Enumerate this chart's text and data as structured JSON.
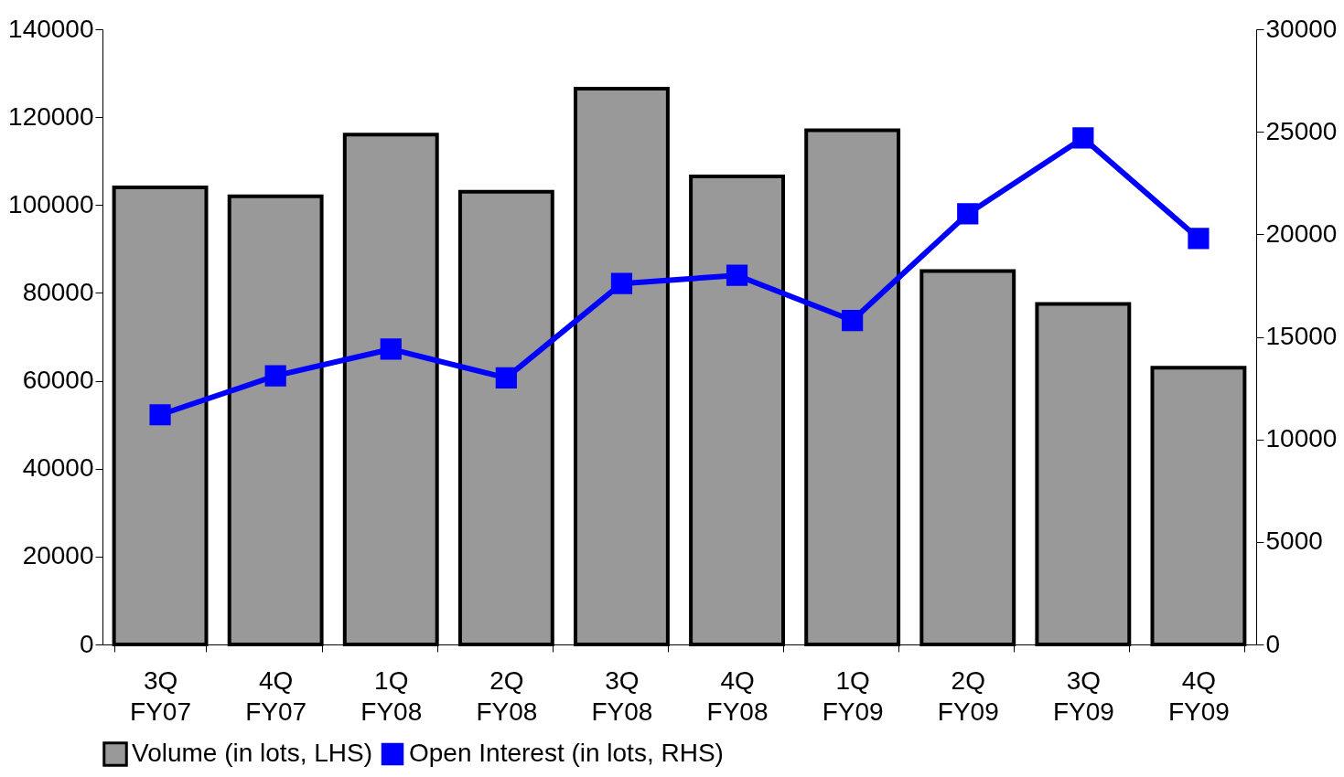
{
  "chart_data": {
    "type": "bar",
    "categories": [
      "3Q FY07",
      "4Q FY07",
      "1Q FY08",
      "2Q FY08",
      "3Q FY08",
      "4Q FY08",
      "1Q FY09",
      "2Q FY09",
      "3Q FY09",
      "4Q FY09"
    ],
    "series": [
      {
        "name": "Volume (in lots, LHS)",
        "color": "#999999",
        "values": [
          104000,
          102000,
          116000,
          103000,
          126500,
          106500,
          117000,
          85000,
          77500,
          63000
        ]
      },
      {
        "name": "Open Interest (in lots, RHS)",
        "type": "line",
        "axis": "y2",
        "color": "#0000ff",
        "values": [
          11200,
          13100,
          14400,
          13000,
          17600,
          18000,
          15800,
          21000,
          24700,
          19800
        ]
      }
    ],
    "ylim": [
      0,
      140000
    ],
    "yticks": [
      0,
      20000,
      40000,
      60000,
      80000,
      100000,
      120000,
      140000
    ],
    "y2lim": [
      0,
      30000
    ],
    "y2ticks": [
      0,
      5000,
      10000,
      15000,
      20000,
      25000,
      30000
    ],
    "grid": false,
    "legend": "bottom",
    "marker": "square"
  }
}
